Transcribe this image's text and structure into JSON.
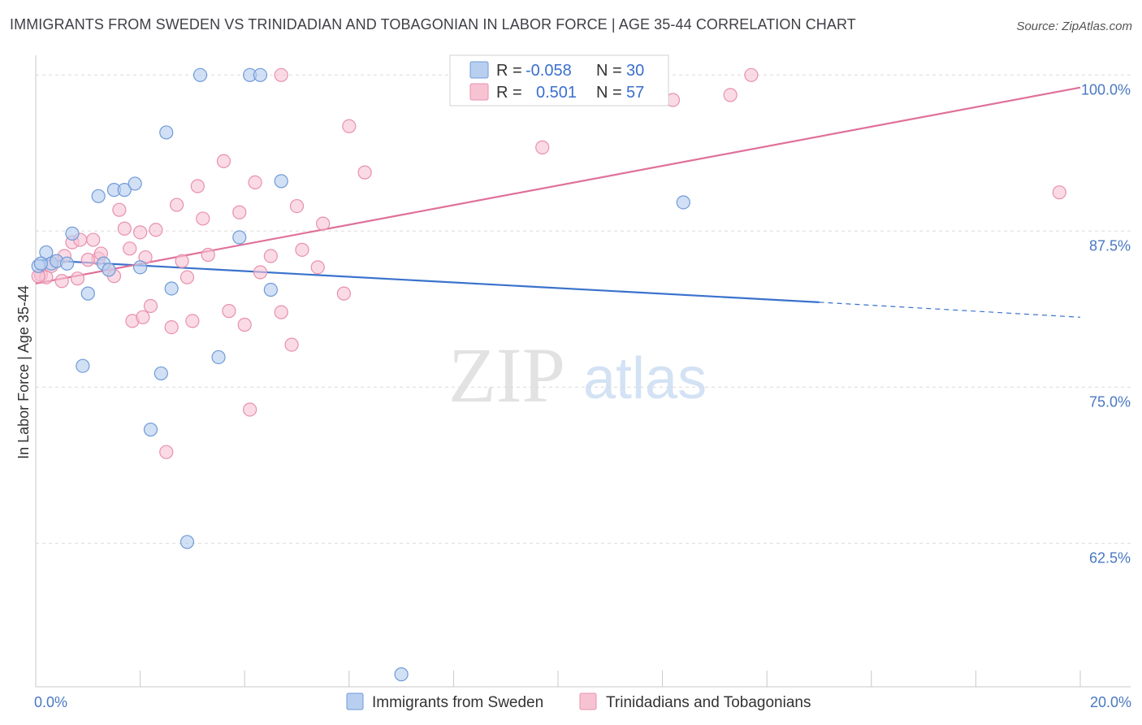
{
  "title": "IMMIGRANTS FROM SWEDEN VS TRINIDADIAN AND TOBAGONIAN IN LABOR FORCE | AGE 35-44 CORRELATION CHART",
  "source": "Source: ZipAtlas.com",
  "watermark": {
    "zip": "ZIP",
    "atlas": "atlas"
  },
  "colors": {
    "blue_fill": "#b8cff0",
    "blue_stroke": "#6f9ad8",
    "blue_line": "#3a72cc",
    "pink_fill": "#f7c3d3",
    "pink_stroke": "#e890ad",
    "pink_line": "#e0709a",
    "tick_text": "#4a78c2",
    "grid": "#dcdcdc"
  },
  "legend_top": {
    "rows": [
      {
        "r_label": "R =",
        "r_value": "-0.058",
        "n_label": "N =",
        "n_value": "30"
      },
      {
        "r_label": "R =",
        "r_value": "0.501",
        "n_label": "N =",
        "n_value": "57"
      }
    ]
  },
  "legend_bottom": [
    "Immigrants from Sweden",
    "Trinidadians and Tobagonians"
  ],
  "chart_data": {
    "type": "scatter",
    "xlabel": "",
    "ylabel": "In Labor Force | Age 35-44",
    "xlim": [
      0,
      20
    ],
    "ylim": [
      51,
      100.8
    ],
    "x_tick_labels": [
      {
        "value": 0,
        "label": "0.0%"
      },
      {
        "value": 20,
        "label": "20.0%"
      }
    ],
    "x_minor_ticks": [
      2,
      4,
      6,
      8,
      10,
      12,
      14,
      16,
      18,
      20
    ],
    "y_ticks": [
      {
        "value": 100,
        "label": "100.0%"
      },
      {
        "value": 87.5,
        "label": "87.5%"
      },
      {
        "value": 75,
        "label": "75.0%"
      },
      {
        "value": 62.5,
        "label": "62.5%"
      }
    ],
    "grid": "horizontal dashed",
    "legend_placement": "top-center",
    "series": [
      {
        "name": "Immigrants from Sweden",
        "color": "#6f9ad8",
        "trend": {
          "x": [
            0,
            15
          ],
          "y": [
            85.2,
            81.8
          ],
          "dashed_to": [
            20,
            80.6
          ]
        },
        "points": [
          [
            0.05,
            84.7
          ],
          [
            0.2,
            85.8
          ],
          [
            0.3,
            84.9
          ],
          [
            0.4,
            85.1
          ],
          [
            0.6,
            84.9
          ],
          [
            0.7,
            87.3
          ],
          [
            1.0,
            82.5
          ],
          [
            1.2,
            90.3
          ],
          [
            1.3,
            84.9
          ],
          [
            1.4,
            84.4
          ],
          [
            1.5,
            90.8
          ],
          [
            1.7,
            90.8
          ],
          [
            1.9,
            91.3
          ],
          [
            2.0,
            84.6
          ],
          [
            2.2,
            71.6
          ],
          [
            2.4,
            76.1
          ],
          [
            2.5,
            95.4
          ],
          [
            2.6,
            82.9
          ],
          [
            2.9,
            62.6
          ],
          [
            3.15,
            100.0
          ],
          [
            3.5,
            77.4
          ],
          [
            3.9,
            87.0
          ],
          [
            4.1,
            100.0
          ],
          [
            4.3,
            100.0
          ],
          [
            4.5,
            82.8
          ],
          [
            4.7,
            91.5
          ],
          [
            12.4,
            89.8
          ],
          [
            7.0,
            52.0
          ],
          [
            0.9,
            76.7
          ],
          [
            0.1,
            84.9
          ]
        ]
      },
      {
        "name": "Trinidadians and Tobagonians",
        "color": "#e890ad",
        "trend": {
          "x": [
            0,
            20
          ],
          "y": [
            83.3,
            99.0
          ]
        },
        "points": [
          [
            0.1,
            84.0
          ],
          [
            0.2,
            83.8
          ],
          [
            0.3,
            84.7
          ],
          [
            0.4,
            85.1
          ],
          [
            0.5,
            83.5
          ],
          [
            0.55,
            85.5
          ],
          [
            0.7,
            86.6
          ],
          [
            0.8,
            83.7
          ],
          [
            0.85,
            86.8
          ],
          [
            1.1,
            86.8
          ],
          [
            1.2,
            85.3
          ],
          [
            1.25,
            85.7
          ],
          [
            1.4,
            84.4
          ],
          [
            1.5,
            83.9
          ],
          [
            1.6,
            89.2
          ],
          [
            1.7,
            87.7
          ],
          [
            1.8,
            86.1
          ],
          [
            1.85,
            80.3
          ],
          [
            2.0,
            87.4
          ],
          [
            2.05,
            80.6
          ],
          [
            2.1,
            85.4
          ],
          [
            2.2,
            81.5
          ],
          [
            2.3,
            87.6
          ],
          [
            2.6,
            79.8
          ],
          [
            2.7,
            89.6
          ],
          [
            2.8,
            85.1
          ],
          [
            2.9,
            83.8
          ],
          [
            3.0,
            80.3
          ],
          [
            3.1,
            91.1
          ],
          [
            3.2,
            88.5
          ],
          [
            3.3,
            85.6
          ],
          [
            3.6,
            93.1
          ],
          [
            3.7,
            81.1
          ],
          [
            3.9,
            89.0
          ],
          [
            4.0,
            80.0
          ],
          [
            4.1,
            73.2
          ],
          [
            4.2,
            91.4
          ],
          [
            4.3,
            84.2
          ],
          [
            4.5,
            85.5
          ],
          [
            4.7,
            81.0
          ],
          [
            4.9,
            78.4
          ],
          [
            5.0,
            89.5
          ],
          [
            5.1,
            86.0
          ],
          [
            5.4,
            84.6
          ],
          [
            5.5,
            88.1
          ],
          [
            5.9,
            82.5
          ],
          [
            6.0,
            95.9
          ],
          [
            6.3,
            92.2
          ],
          [
            9.7,
            94.2
          ],
          [
            12.2,
            98.0
          ],
          [
            13.3,
            98.4
          ],
          [
            13.7,
            100.0
          ],
          [
            19.6,
            90.6
          ],
          [
            4.7,
            100.0
          ],
          [
            2.5,
            69.8
          ],
          [
            0.05,
            83.9
          ],
          [
            1.0,
            85.2
          ]
        ]
      }
    ]
  }
}
